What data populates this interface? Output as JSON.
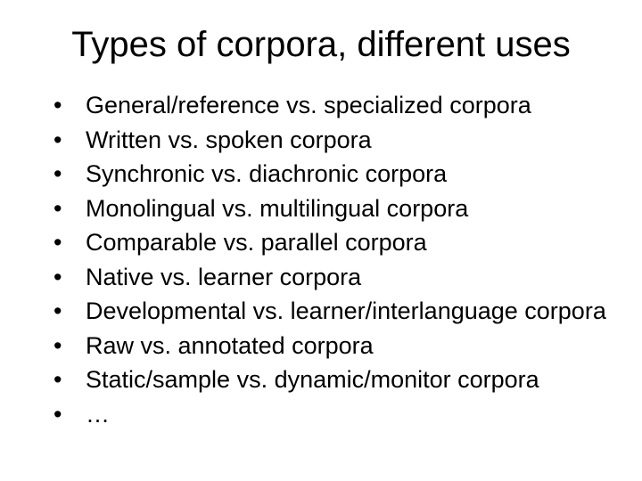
{
  "slide": {
    "background_color": "#ffffff",
    "text_color": "#000000",
    "title": "Types of corpora, different uses",
    "title_fontsize": 40,
    "body_fontsize": 27,
    "bullets": [
      "General/reference vs. specialized corpora",
      "Written vs. spoken corpora",
      "Synchronic vs. diachronic corpora",
      "Monolingual vs. multilingual corpora",
      "Comparable vs. parallel corpora",
      "Native vs. learner corpora",
      "Developmental vs. learner/interlanguage corpora",
      "Raw vs. annotated corpora",
      "Static/sample vs. dynamic/monitor corpora",
      "…"
    ],
    "bullet_glyph": "•"
  }
}
